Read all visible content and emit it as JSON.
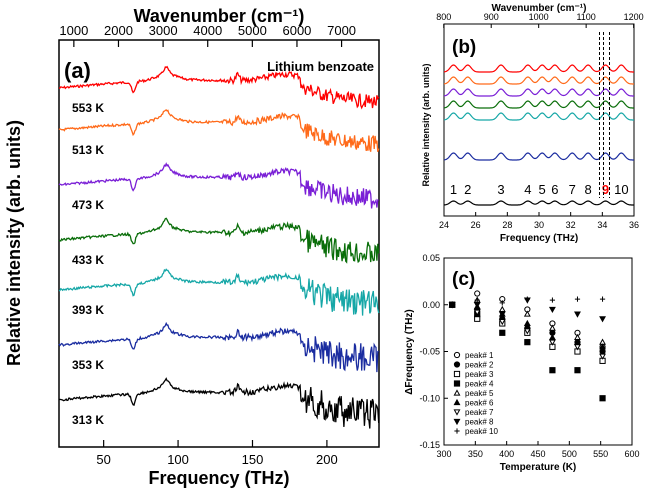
{
  "chart_data": [
    {
      "id": "a",
      "type": "line",
      "panel_label": "(a)",
      "title": "Lithium benzoate",
      "xlabel": "Frequency (THz)",
      "ylabel": "Relative intensity (arb. units)",
      "top_axis_label": "Wavenumber (cm⁻¹)",
      "xlim": [
        20,
        235
      ],
      "x_ticks": [
        50,
        100,
        150,
        200
      ],
      "top_ticks": [
        1000,
        2000,
        3000,
        4000,
        5000,
        6000,
        7000
      ],
      "series": [
        {
          "name": "553 K",
          "color": "#ff0000"
        },
        {
          "name": "513 K",
          "color": "#ff6a1a"
        },
        {
          "name": "473 K",
          "color": "#7a1fd6"
        },
        {
          "name": "433 K",
          "color": "#0a6e0a"
        },
        {
          "name": "393 K",
          "color": "#16a7a7"
        },
        {
          "name": "353 K",
          "color": "#1a2ca0"
        },
        {
          "name": "313 K",
          "color": "#000000"
        }
      ],
      "features_thz": [
        70,
        92,
        140,
        145,
        180
      ]
    },
    {
      "id": "b",
      "type": "line",
      "panel_label": "(b)",
      "xlabel": "Frequency (THz)",
      "ylabel": "Relative intensity (arb. units)",
      "top_axis_label": "Wavenumber (cm⁻¹)",
      "xlim": [
        24,
        36
      ],
      "x_ticks": [
        24,
        26,
        28,
        30,
        32,
        34,
        36
      ],
      "top_ticks": [
        800,
        900,
        1000,
        1100,
        1200
      ],
      "peak_labels": [
        "1",
        "2",
        "3",
        "4",
        "5",
        "6",
        "7",
        "8",
        "9",
        "10"
      ],
      "peak_positions_thz": [
        24.6,
        25.5,
        27.6,
        29.3,
        30.2,
        31.0,
        32.1,
        33.1,
        34.2,
        35.2
      ],
      "highlight_peak": "9",
      "highlight_color": "#ff0000",
      "series_colors": [
        "#ff0000",
        "#ff6a1a",
        "#7a1fd6",
        "#0a6e0a",
        "#16a7a7",
        "#1a2ca0",
        "#000000"
      ]
    },
    {
      "id": "c",
      "type": "scatter",
      "panel_label": "(c)",
      "xlabel": "Temperature (K)",
      "ylabel": "ΔFrequency (THz)",
      "xlim": [
        300,
        600
      ],
      "ylim": [
        -0.15,
        0.05
      ],
      "x_ticks": [
        300,
        350,
        400,
        450,
        500,
        550,
        600
      ],
      "y_ticks": [
        -0.15,
        -0.1,
        -0.05,
        0.0,
        0.05
      ],
      "y_tick_labels": [
        "-0.15",
        "-0.10",
        "-0.05",
        "0.00",
        "0.05"
      ],
      "temperatures": [
        313,
        353,
        393,
        433,
        473,
        513,
        553
      ],
      "series": [
        {
          "name": "peak# 1",
          "marker": "circle-open",
          "values": [
            0.0,
            0.012,
            0.006,
            -0.005,
            -0.02,
            -0.03,
            -0.045
          ]
        },
        {
          "name": "peak# 2",
          "marker": "circle-filled",
          "values": [
            0.0,
            -0.005,
            -0.015,
            -0.025,
            -0.03,
            -0.04,
            -0.05
          ]
        },
        {
          "name": "peak# 3",
          "marker": "square-open",
          "values": [
            0.0,
            -0.015,
            -0.02,
            -0.03,
            -0.045,
            -0.05,
            -0.06
          ]
        },
        {
          "name": "peak# 4",
          "marker": "square-filled",
          "values": [
            0.0,
            -0.01,
            -0.03,
            -0.04,
            -0.07,
            -0.07,
            -0.1
          ]
        },
        {
          "name": "peak# 5",
          "marker": "triangle-up-open",
          "values": [
            0.0,
            0.005,
            -0.005,
            -0.01,
            -0.025,
            -0.035,
            -0.04
          ]
        },
        {
          "name": "peak# 6",
          "marker": "triangle-up-filled",
          "values": [
            0.0,
            -0.002,
            -0.01,
            -0.02,
            -0.035,
            -0.04,
            -0.045
          ]
        },
        {
          "name": "peak# 7",
          "marker": "triangle-down-open",
          "values": [
            0.0,
            -0.008,
            -0.018,
            -0.028,
            -0.04,
            -0.045,
            -0.055
          ]
        },
        {
          "name": "peak# 8",
          "marker": "triangle-down-filled",
          "values": [
            0.0,
            0.0,
            -0.01,
            0.005,
            -0.005,
            -0.01,
            -0.015
          ]
        },
        {
          "name": "peak# 10",
          "marker": "plus",
          "values": [
            0.0,
            0.005,
            0.002,
            0.006,
            0.005,
            0.006,
            0.006
          ]
        }
      ]
    }
  ]
}
